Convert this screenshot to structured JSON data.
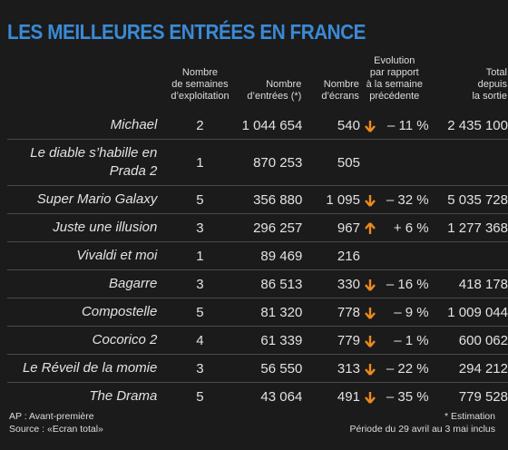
{
  "title": "LES MEILLEURES ENTRÉES EN FRANCE",
  "table": {
    "headers": [
      [
        "Nombre",
        "de semaines",
        "d’exploitation"
      ],
      [
        "Nombre",
        "d’entrées (*)"
      ],
      [
        "Nombre",
        "d’écrans"
      ],
      [
        "Evolution",
        "par rapport",
        "à la semaine",
        "précédente"
      ],
      [
        "Total",
        "depuis",
        "la sortie"
      ]
    ],
    "rows": [
      {
        "film": "Michael",
        "weeks": "2",
        "entries": "1 044 654",
        "screens": "540",
        "trend": "down",
        "evolution": "– 11 %",
        "total": "2 435 100"
      },
      {
        "film": "Le diable s’habille en Prada 2",
        "weeks": "1",
        "entries": "870 253",
        "screens": "505"
      },
      {
        "film": "Super Mario Galaxy",
        "weeks": "5",
        "entries": "356 880",
        "screens": "1 095",
        "trend": "down",
        "evolution": "– 32 %",
        "total": "5 035 728"
      },
      {
        "film": "Juste une illusion",
        "weeks": "3",
        "entries": "296 257",
        "screens": "967",
        "trend": "up",
        "evolution": "+ 6 %",
        "total": "1 277 368"
      },
      {
        "film": "Vivaldi et moi",
        "weeks": "1",
        "entries": "89 469",
        "screens": "216"
      },
      {
        "film": "Bagarre",
        "weeks": "3",
        "entries": "86 513",
        "screens": "330",
        "trend": "down",
        "evolution": "– 16 %",
        "total": "418 178"
      },
      {
        "film": "Compostelle",
        "weeks": "5",
        "entries": "81 320",
        "screens": "778",
        "trend": "down",
        "evolution": "– 9 %",
        "total": "1 009 044"
      },
      {
        "film": "Cocorico 2",
        "weeks": "4",
        "entries": "61 339",
        "screens": "779",
        "trend": "down",
        "evolution": "– 1 %",
        "total": "600 062"
      },
      {
        "film": "Le Réveil de la momie",
        "weeks": "3",
        "entries": "56 550",
        "screens": "313",
        "trend": "down",
        "evolution": "– 22 %",
        "total": "294 212"
      },
      {
        "film": "The Drama",
        "weeks": "5",
        "entries": "43 064",
        "screens": "491",
        "trend": "down",
        "evolution": "– 35 %",
        "total": "779 528"
      }
    ]
  },
  "footer": {
    "left": [
      "AP : Avant-première",
      "Source : «Ecran total»"
    ],
    "right": [
      "* Estimation",
      "Période du 29 avril au 3 mai inclus"
    ]
  }
}
